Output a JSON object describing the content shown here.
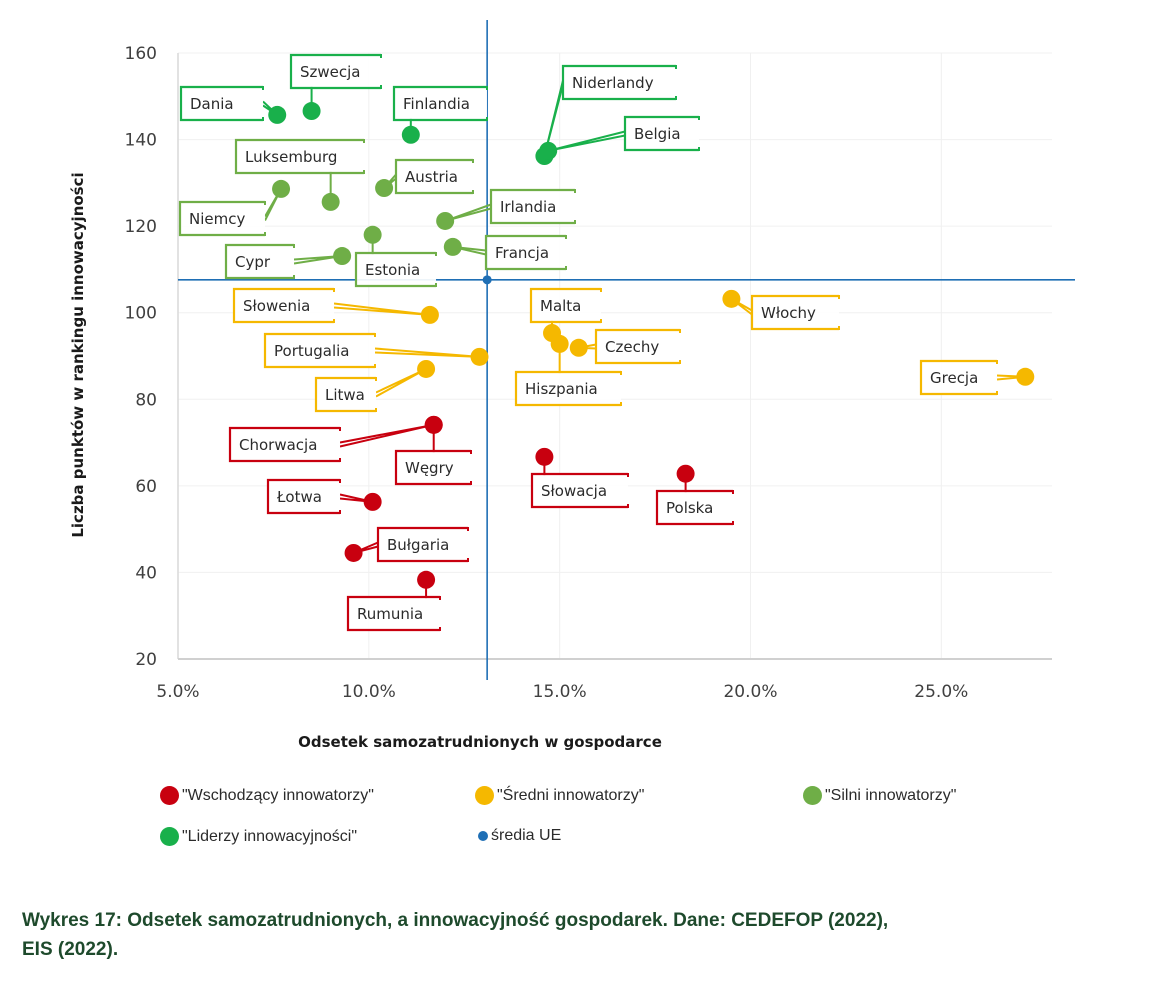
{
  "chart_data": {
    "type": "scatter",
    "title": "",
    "xlabel": "Odsetek samozatrudnionych w gospodarce",
    "ylabel": "Liczba punktów w rankingu innowacyjności",
    "xlim": [
      5.0,
      27.9
    ],
    "ylim": [
      20,
      160
    ],
    "x_ticks": [
      "5.0%",
      "10.0%",
      "15.0%",
      "20.0%",
      "25.0%"
    ],
    "x_tick_values": [
      5,
      10,
      15,
      20,
      25
    ],
    "y_ticks": [
      "20",
      "40",
      "60",
      "80",
      "100",
      "120",
      "140",
      "160"
    ],
    "y_tick_values": [
      20,
      40,
      60,
      80,
      100,
      120,
      140,
      160
    ],
    "grid": true,
    "legend_position": "bottom",
    "eu_mean": {
      "name": "średia UE",
      "x": 13.1,
      "y": 107.6,
      "color": "#1f6fb5"
    },
    "series": [
      {
        "name": "\"Wschodzący innowatorzy\"",
        "color": "#c8000f",
        "points": [
          {
            "label": "Chorwacja",
            "x": 11.7,
            "y": 74.1
          },
          {
            "label": "Węgry",
            "x": 11.7,
            "y": 74.1
          },
          {
            "label": "Łotwa",
            "x": 10.1,
            "y": 56.3
          },
          {
            "label": "Bułgaria",
            "x": 9.6,
            "y": 44.5
          },
          {
            "label": "Rumunia",
            "x": 11.5,
            "y": 38.3
          },
          {
            "label": "Słowacja",
            "x": 14.6,
            "y": 66.7
          },
          {
            "label": "Polska",
            "x": 18.3,
            "y": 62.8
          }
        ]
      },
      {
        "name": "\"Średni innowatorzy\"",
        "color": "#f5b800",
        "points": [
          {
            "label": "Słowenia",
            "x": 11.6,
            "y": 99.5
          },
          {
            "label": "Portugalia",
            "x": 12.9,
            "y": 89.8
          },
          {
            "label": "Litwa",
            "x": 11.5,
            "y": 87.0
          },
          {
            "label": "Malta",
            "x": 14.8,
            "y": 95.3
          },
          {
            "label": "Hiszpania",
            "x": 15.0,
            "y": 92.8
          },
          {
            "label": "Czechy",
            "x": 15.5,
            "y": 91.9
          },
          {
            "label": "Włochy",
            "x": 19.5,
            "y": 103.2
          },
          {
            "label": "Grecja",
            "x": 27.2,
            "y": 85.2
          }
        ]
      },
      {
        "name": "\"Silni innowatorzy\"",
        "color": "#6fae47",
        "points": [
          {
            "label": "Luksemburg",
            "x": 9.0,
            "y": 125.6
          },
          {
            "label": "Niemcy",
            "x": 7.7,
            "y": 128.6
          },
          {
            "label": "Austria",
            "x": 10.4,
            "y": 128.8
          },
          {
            "label": "Irlandia",
            "x": 12.0,
            "y": 121.2
          },
          {
            "label": "Estonia",
            "x": 10.1,
            "y": 118.0
          },
          {
            "label": "Francja",
            "x": 12.2,
            "y": 115.2
          },
          {
            "label": "Cypr",
            "x": 9.3,
            "y": 113.1
          }
        ]
      },
      {
        "name": "\"Liderzy innowacyjności\"",
        "color": "#19b04b",
        "points": [
          {
            "label": "Dania",
            "x": 7.6,
            "y": 145.7
          },
          {
            "label": "Szwecja",
            "x": 8.5,
            "y": 146.6
          },
          {
            "label": "Finlandia",
            "x": 11.1,
            "y": 141.1
          },
          {
            "label": "Niderlandy",
            "x": 14.6,
            "y": 136.2
          },
          {
            "label": "Belgia",
            "x": 14.7,
            "y": 137.4
          }
        ]
      }
    ]
  },
  "legend": [
    {
      "label": "\"Wschodzący innowatorzy\"",
      "color": "#c8000f"
    },
    {
      "label": "\"Średni innowatorzy\"",
      "color": "#f5b800"
    },
    {
      "label": "\"Silni innowatorzy\"",
      "color": "#6fae47"
    },
    {
      "label": "\"Liderzy innowacyjności\"",
      "color": "#19b04b"
    },
    {
      "label": "średia UE",
      "color": "#1f6fb5"
    }
  ],
  "caption": {
    "line1": "Wykres 17: Odsetek samozatrudnionych, a innowacyjność gospodarek. Dane: CEDEFOP (2022),",
    "line2": "EIS (2022)."
  }
}
